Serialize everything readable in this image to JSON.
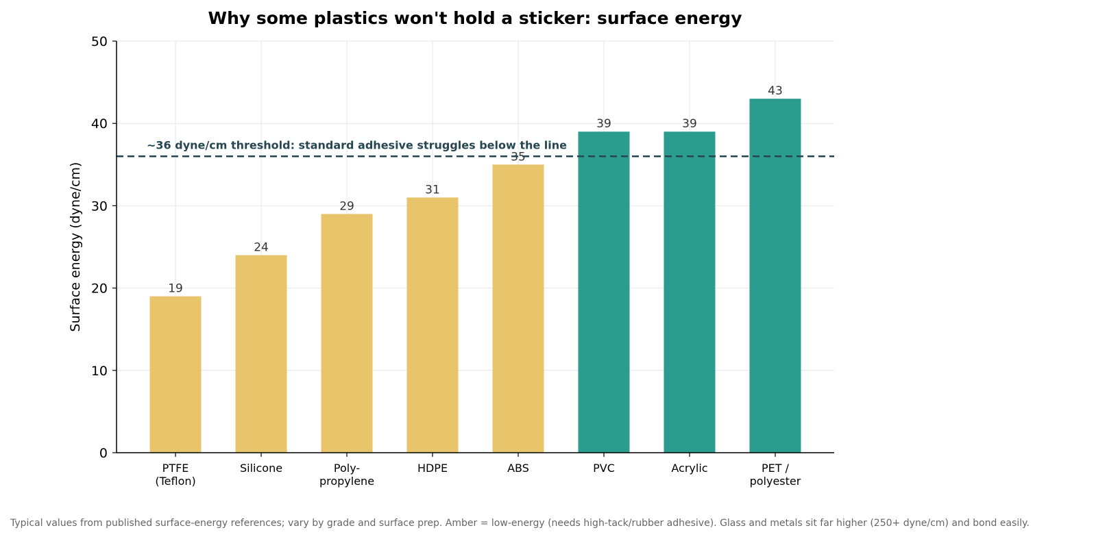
{
  "chart_data": {
    "type": "bar",
    "title": "Why some plastics won't hold a sticker: surface energy",
    "xlabel": "",
    "ylabel": "Surface energy (dyne/cm)",
    "ylim": [
      0,
      50
    ],
    "yticks": [
      0,
      10,
      20,
      30,
      40,
      50
    ],
    "grid": true,
    "categories": [
      [
        "PTFE",
        "(Teflon)"
      ],
      [
        "Silicone"
      ],
      [
        "Poly-",
        "propylene"
      ],
      [
        "HDPE"
      ],
      [
        "ABS"
      ],
      [
        "PVC"
      ],
      [
        "Acrylic"
      ],
      [
        "PET /",
        "polyester"
      ]
    ],
    "values": [
      19,
      24,
      29,
      31,
      35,
      39,
      39,
      43
    ],
    "bar_labels": [
      "19",
      "24",
      "29",
      "31",
      "35",
      "39",
      "39",
      "43"
    ],
    "bar_groups": [
      "low",
      "low",
      "low",
      "low",
      "low",
      "high",
      "high",
      "high"
    ],
    "colors": {
      "low": "#E8C46B",
      "high": "#2A9D8F",
      "threshold": "#264653",
      "grid": "#e6e6e6",
      "axis": "#000000"
    },
    "threshold": {
      "value": 36,
      "label": "~36 dyne/cm threshold: standard adhesive struggles below the line"
    },
    "footnote": "Typical values from published surface-energy references; vary by grade and surface prep. Amber = low-energy (needs high-tack/rubber adhesive). Glass and metals sit far higher (250+ dyne/cm) and bond easily."
  }
}
